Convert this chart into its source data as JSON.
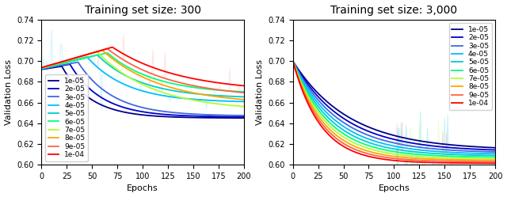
{
  "title1": "Training set size: 300",
  "title2": "Training set size: 3,000",
  "xlabel": "Epochs",
  "ylabel": "Validation Loss",
  "ylim": [
    0.6,
    0.74
  ],
  "xlim": [
    0,
    200
  ],
  "xticks": [
    0,
    25,
    50,
    75,
    100,
    125,
    150,
    175,
    200
  ],
  "yticks": [
    0.6,
    0.62,
    0.64,
    0.66,
    0.68,
    0.7,
    0.72,
    0.74
  ],
  "lr_labels": [
    "1e-05",
    "2e-05",
    "3e-05",
    "4e-05",
    "5e-05",
    "6e-05",
    "7e-05",
    "8e-05",
    "9e-05",
    "1e-04"
  ],
  "colors": [
    "#00008B",
    "#0000CD",
    "#4169E1",
    "#00BFFF",
    "#00CED1",
    "#00FF7F",
    "#ADFF2F",
    "#FFA500",
    "#FF6347",
    "#FF0000"
  ],
  "n_epochs": 201,
  "legend1_loc": "lower left",
  "legend2_loc": "upper right"
}
